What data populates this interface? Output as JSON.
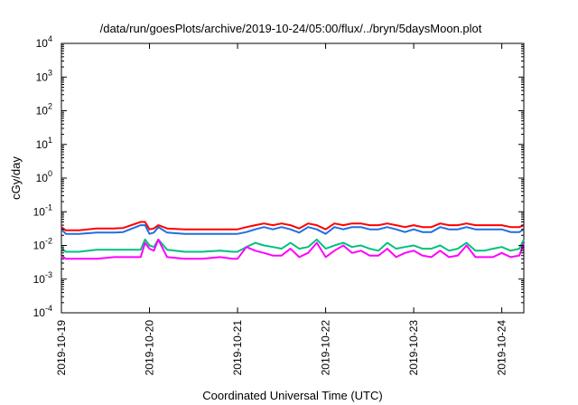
{
  "chart_data": {
    "type": "line",
    "title": "/data/run/goesPlots/archive/2019-10-24/05:00/flux/../bryn/5daysMoon.plot",
    "xlabel": "Coordinated Universal Time (UTC)",
    "ylabel": "cGy/day",
    "yscale": "log",
    "ylim": [
      0.0001,
      10000
    ],
    "xlim": [
      0,
      5.25
    ],
    "grid": false,
    "x_ticks": [
      {
        "x": 0,
        "label": "2019-10-19"
      },
      {
        "x": 1,
        "label": "2019-10-20"
      },
      {
        "x": 2,
        "label": "2019-10-21"
      },
      {
        "x": 3,
        "label": "2019-10-22"
      },
      {
        "x": 4,
        "label": "2019-10-23"
      },
      {
        "x": 5,
        "label": "2019-10-24"
      }
    ],
    "y_ticks": [
      {
        "y": 0.0001,
        "base": "10",
        "exp": "-4"
      },
      {
        "y": 0.001,
        "base": "10",
        "exp": "-3"
      },
      {
        "y": 0.01,
        "base": "10",
        "exp": "-2"
      },
      {
        "y": 0.1,
        "base": "10",
        "exp": "-1"
      },
      {
        "y": 1,
        "base": "10",
        "exp": "0"
      },
      {
        "y": 10,
        "base": "10",
        "exp": "1"
      },
      {
        "y": 100,
        "base": "10",
        "exp": "2"
      },
      {
        "y": 1000,
        "base": "10",
        "exp": "3"
      },
      {
        "y": 10000,
        "base": "10",
        "exp": "4"
      }
    ],
    "x": [
      0,
      0.05,
      0.1,
      0.2,
      0.4,
      0.6,
      0.7,
      0.9,
      0.95,
      1.0,
      1.05,
      1.1,
      1.2,
      1.4,
      1.5,
      1.6,
      1.8,
      1.95,
      2.0,
      2.1,
      2.2,
      2.3,
      2.4,
      2.5,
      2.6,
      2.7,
      2.8,
      2.9,
      3.0,
      3.1,
      3.2,
      3.3,
      3.4,
      3.5,
      3.6,
      3.7,
      3.8,
      3.9,
      4.0,
      4.1,
      4.2,
      4.3,
      4.4,
      4.5,
      4.6,
      4.7,
      4.8,
      4.9,
      5.0,
      5.1,
      5.2,
      5.25
    ],
    "series": [
      {
        "color": "#ff0000",
        "values": [
          0.035,
          0.028,
          0.028,
          0.028,
          0.032,
          0.032,
          0.033,
          0.05,
          0.05,
          0.03,
          0.032,
          0.04,
          0.032,
          0.03,
          0.03,
          0.03,
          0.03,
          0.03,
          0.03,
          0.035,
          0.04,
          0.045,
          0.04,
          0.045,
          0.04,
          0.032,
          0.045,
          0.04,
          0.03,
          0.045,
          0.04,
          0.045,
          0.045,
          0.04,
          0.04,
          0.045,
          0.04,
          0.035,
          0.04,
          0.035,
          0.035,
          0.045,
          0.04,
          0.04,
          0.045,
          0.04,
          0.04,
          0.04,
          0.04,
          0.035,
          0.035,
          0.04
        ]
      },
      {
        "color": "#1f6fe0",
        "values": [
          0.03,
          0.022,
          0.022,
          0.022,
          0.024,
          0.024,
          0.025,
          0.04,
          0.04,
          0.022,
          0.024,
          0.035,
          0.024,
          0.022,
          0.022,
          0.022,
          0.022,
          0.022,
          0.022,
          0.025,
          0.03,
          0.035,
          0.03,
          0.035,
          0.03,
          0.024,
          0.035,
          0.03,
          0.022,
          0.035,
          0.03,
          0.035,
          0.035,
          0.03,
          0.03,
          0.035,
          0.03,
          0.025,
          0.03,
          0.025,
          0.025,
          0.035,
          0.03,
          0.03,
          0.035,
          0.03,
          0.03,
          0.03,
          0.03,
          0.025,
          0.025,
          0.03
        ]
      },
      {
        "color": "#00c080",
        "values": [
          0.008,
          0.0065,
          0.0065,
          0.0065,
          0.0075,
          0.0075,
          0.0075,
          0.0075,
          0.015,
          0.01,
          0.009,
          0.015,
          0.0075,
          0.0065,
          0.0065,
          0.0065,
          0.007,
          0.0065,
          0.0065,
          0.009,
          0.012,
          0.01,
          0.009,
          0.008,
          0.012,
          0.008,
          0.009,
          0.015,
          0.008,
          0.01,
          0.012,
          0.009,
          0.01,
          0.008,
          0.007,
          0.012,
          0.008,
          0.009,
          0.01,
          0.008,
          0.008,
          0.01,
          0.007,
          0.008,
          0.012,
          0.007,
          0.007,
          0.008,
          0.009,
          0.007,
          0.008,
          0.015
        ]
      },
      {
        "color": "#ff00ff",
        "values": [
          0.005,
          0.004,
          0.004,
          0.004,
          0.004,
          0.0045,
          0.0045,
          0.0045,
          0.012,
          0.008,
          0.007,
          0.015,
          0.0045,
          0.004,
          0.004,
          0.004,
          0.0045,
          0.004,
          0.004,
          0.009,
          0.007,
          0.006,
          0.005,
          0.005,
          0.008,
          0.0045,
          0.006,
          0.012,
          0.0045,
          0.007,
          0.01,
          0.006,
          0.007,
          0.005,
          0.005,
          0.008,
          0.0045,
          0.006,
          0.007,
          0.005,
          0.0045,
          0.007,
          0.0045,
          0.005,
          0.01,
          0.0045,
          0.0045,
          0.0045,
          0.006,
          0.0045,
          0.005,
          0.012
        ]
      }
    ]
  }
}
